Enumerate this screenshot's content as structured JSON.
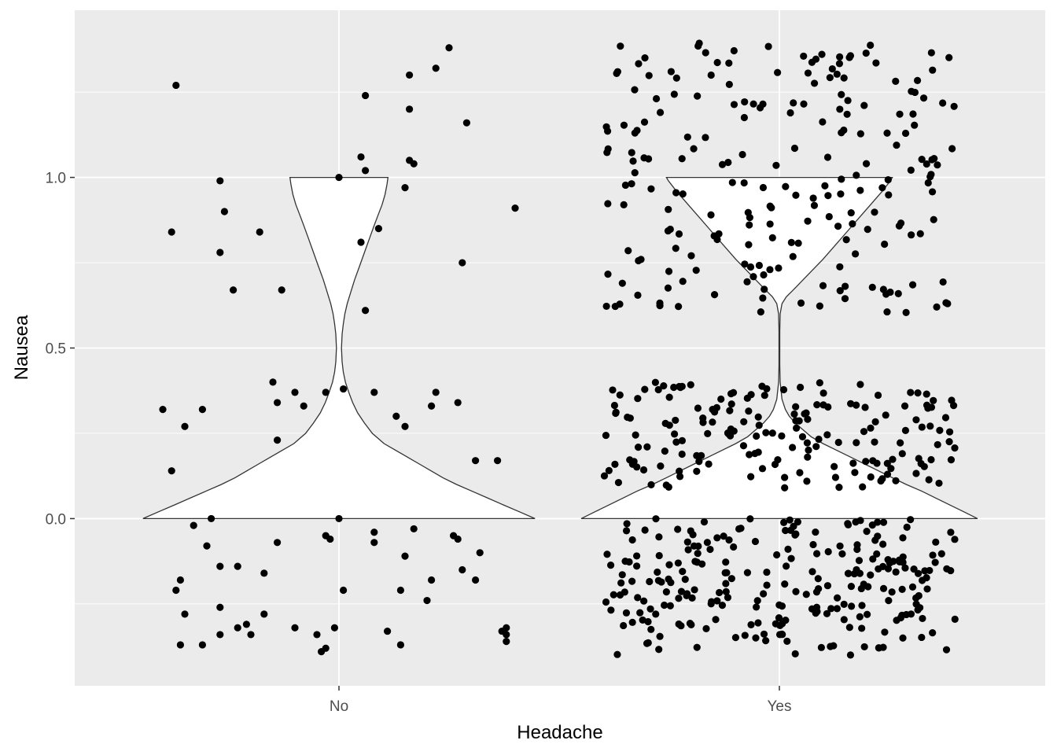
{
  "chart_data": {
    "type": "violin",
    "xlabel": "Headache",
    "ylabel": "Nausea",
    "categories": [
      "No",
      "Yes"
    ],
    "ylim": [
      -0.49,
      1.49
    ],
    "yticks": [
      0.0,
      0.5,
      1.0
    ],
    "ytick_labels": [
      "0.0",
      "0.5",
      "1.0"
    ],
    "grid": true,
    "panel_color": "#ebebeb",
    "grid_color": "#ffffff",
    "violin_fill": "#ffffff",
    "violin_stroke": "#333333",
    "point_color": "#000000",
    "violins": [
      {
        "group": "No",
        "max_half_width": 0.445,
        "profile": [
          [
            0.0,
            1.0
          ],
          [
            0.02,
            0.92
          ],
          [
            0.04,
            0.84
          ],
          [
            0.06,
            0.76
          ],
          [
            0.08,
            0.68
          ],
          [
            0.1,
            0.6
          ],
          [
            0.12,
            0.53
          ],
          [
            0.14,
            0.47
          ],
          [
            0.16,
            0.41
          ],
          [
            0.18,
            0.35
          ],
          [
            0.2,
            0.29
          ],
          [
            0.22,
            0.23
          ],
          [
            0.25,
            0.17
          ],
          [
            0.28,
            0.13
          ],
          [
            0.31,
            0.095
          ],
          [
            0.34,
            0.07
          ],
          [
            0.37,
            0.05
          ],
          [
            0.4,
            0.033
          ],
          [
            0.43,
            0.022
          ],
          [
            0.46,
            0.016
          ],
          [
            0.5,
            0.013
          ],
          [
            0.54,
            0.016
          ],
          [
            0.57,
            0.022
          ],
          [
            0.6,
            0.03
          ],
          [
            0.63,
            0.042
          ],
          [
            0.66,
            0.058
          ],
          [
            0.7,
            0.08
          ],
          [
            0.74,
            0.105
          ],
          [
            0.78,
            0.13
          ],
          [
            0.82,
            0.155
          ],
          [
            0.86,
            0.18
          ],
          [
            0.89,
            0.2
          ],
          [
            0.92,
            0.22
          ],
          [
            0.95,
            0.235
          ],
          [
            0.98,
            0.245
          ],
          [
            1.0,
            0.25
          ]
        ]
      },
      {
        "group": "Yes",
        "max_half_width": 0.45,
        "profile": [
          [
            0.0,
            1.0
          ],
          [
            0.02,
            0.93
          ],
          [
            0.04,
            0.86
          ],
          [
            0.06,
            0.79
          ],
          [
            0.08,
            0.72
          ],
          [
            0.1,
            0.64
          ],
          [
            0.12,
            0.57
          ],
          [
            0.14,
            0.5
          ],
          [
            0.16,
            0.43
          ],
          [
            0.18,
            0.36
          ],
          [
            0.2,
            0.29
          ],
          [
            0.22,
            0.22
          ],
          [
            0.24,
            0.16
          ],
          [
            0.26,
            0.12
          ],
          [
            0.28,
            0.08
          ],
          [
            0.3,
            0.05
          ],
          [
            0.32,
            0.03
          ],
          [
            0.35,
            0.013
          ],
          [
            0.4,
            0.004
          ],
          [
            0.45,
            0.002
          ],
          [
            0.5,
            0.002
          ],
          [
            0.55,
            0.002
          ],
          [
            0.6,
            0.004
          ],
          [
            0.63,
            0.013
          ],
          [
            0.65,
            0.035
          ],
          [
            0.67,
            0.07
          ],
          [
            0.7,
            0.12
          ],
          [
            0.73,
            0.17
          ],
          [
            0.76,
            0.22
          ],
          [
            0.8,
            0.28
          ],
          [
            0.84,
            0.34
          ],
          [
            0.88,
            0.4
          ],
          [
            0.92,
            0.46
          ],
          [
            0.96,
            0.52
          ],
          [
            0.99,
            0.56
          ],
          [
            1.0,
            0.57
          ]
        ]
      }
    ],
    "jitter_points": [
      {
        "group": "No",
        "points": [
          [
            -0.37,
            1.27
          ],
          [
            -0.38,
            0.84
          ],
          [
            -0.27,
            0.99
          ],
          [
            -0.26,
            0.9
          ],
          [
            -0.27,
            0.78
          ],
          [
            -0.24,
            0.67
          ],
          [
            -0.18,
            0.84
          ],
          [
            -0.13,
            0.67
          ],
          [
            -0.15,
            0.4
          ],
          [
            -0.14,
            0.34
          ],
          [
            -0.1,
            0.37
          ],
          [
            -0.08,
            0.33
          ],
          [
            -0.03,
            0.37
          ],
          [
            0.0,
            1.0
          ],
          [
            0.01,
            0.38
          ],
          [
            0.05,
            0.81
          ],
          [
            0.06,
            1.24
          ],
          [
            0.05,
            1.06
          ],
          [
            0.06,
            1.02
          ],
          [
            0.06,
            0.61
          ],
          [
            0.08,
            0.37
          ],
          [
            0.09,
            0.85
          ],
          [
            0.13,
            0.3
          ],
          [
            0.15,
            0.27
          ],
          [
            0.15,
            0.97
          ],
          [
            0.16,
            1.05
          ],
          [
            0.16,
            1.2
          ],
          [
            0.16,
            1.3
          ],
          [
            0.17,
            1.04
          ],
          [
            0.21,
            0.33
          ],
          [
            0.22,
            0.37
          ],
          [
            0.22,
            1.32
          ],
          [
            0.25,
            1.38
          ],
          [
            0.27,
            0.34
          ],
          [
            0.28,
            0.75
          ],
          [
            0.29,
            1.16
          ],
          [
            0.31,
            0.17
          ],
          [
            0.36,
            0.17
          ],
          [
            0.4,
            0.91
          ],
          [
            -0.4,
            0.32
          ],
          [
            -0.38,
            0.14
          ],
          [
            -0.35,
            0.27
          ],
          [
            -0.31,
            0.32
          ],
          [
            -0.14,
            0.23
          ],
          [
            -0.33,
            -0.02
          ],
          [
            -0.3,
            -0.08
          ],
          [
            -0.27,
            -0.14
          ],
          [
            -0.23,
            -0.14
          ],
          [
            -0.17,
            -0.16
          ],
          [
            -0.14,
            -0.07
          ],
          [
            -0.03,
            -0.05
          ],
          [
            -0.02,
            -0.06
          ],
          [
            0.01,
            -0.21
          ],
          [
            0.08,
            -0.04
          ],
          [
            0.08,
            -0.07
          ],
          [
            0.15,
            -0.11
          ],
          [
            0.14,
            -0.21
          ],
          [
            0.17,
            -0.03
          ],
          [
            0.2,
            -0.24
          ],
          [
            0.21,
            -0.18
          ],
          [
            0.26,
            -0.05
          ],
          [
            0.27,
            -0.06
          ],
          [
            0.28,
            -0.15
          ],
          [
            0.31,
            -0.18
          ],
          [
            0.32,
            -0.1
          ],
          [
            -0.36,
            -0.18
          ],
          [
            -0.37,
            -0.21
          ],
          [
            -0.35,
            -0.28
          ],
          [
            -0.36,
            -0.37
          ],
          [
            -0.31,
            -0.37
          ],
          [
            -0.27,
            -0.26
          ],
          [
            -0.27,
            -0.34
          ],
          [
            -0.23,
            -0.32
          ],
          [
            -0.21,
            -0.31
          ],
          [
            -0.2,
            -0.34
          ],
          [
            -0.17,
            -0.28
          ],
          [
            -0.1,
            -0.32
          ],
          [
            -0.05,
            -0.34
          ],
          [
            -0.04,
            -0.39
          ],
          [
            -0.03,
            -0.38
          ],
          [
            -0.01,
            -0.32
          ],
          [
            0.11,
            -0.33
          ],
          [
            0.14,
            -0.37
          ],
          [
            0.37,
            -0.33
          ],
          [
            0.38,
            -0.32
          ],
          [
            0.38,
            -0.34
          ],
          [
            0.38,
            -0.36
          ],
          [
            -0.29,
            0.0
          ],
          [
            0.0,
            0.0
          ]
        ]
      },
      {
        "group": "Yes",
        "seed": 20240517,
        "bands": [
          {
            "count": 215,
            "y_min": 0.6,
            "y_max": 1.4,
            "x_min": -0.4,
            "x_max": 0.4
          },
          {
            "count": 175,
            "y_min": 0.09,
            "y_max": 0.4,
            "x_min": -0.4,
            "x_max": 0.4
          },
          {
            "count": 250,
            "y_min": -0.4,
            "y_max": 0.0,
            "x_min": -0.4,
            "x_max": 0.4
          }
        ]
      }
    ]
  }
}
